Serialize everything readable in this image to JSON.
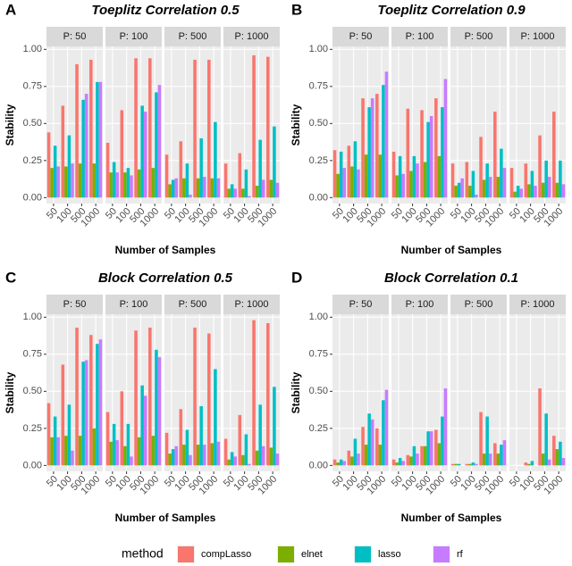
{
  "legend_title": "method",
  "chart_data": [
    {
      "type": "bar",
      "tag": "A",
      "title": "Toeplitz Correlation 0.5",
      "xlabel": "Number of Samples",
      "ylabel": "Stability",
      "facets": [
        "P: 50",
        "P: 100",
        "P: 500",
        "P: 1000"
      ],
      "categories": [
        "50",
        "100",
        "500",
        "1000"
      ],
      "ylim": [
        -0.04,
        1.02
      ],
      "yticks": [
        {
          "value": 0,
          "label": "0.00"
        },
        {
          "value": 0.25,
          "label": "0.25"
        },
        {
          "value": 0.5,
          "label": "0.50"
        },
        {
          "value": 0.75,
          "label": "0.75"
        },
        {
          "value": 1,
          "label": "1.00"
        }
      ],
      "series": [
        {
          "name": "compLasso",
          "color": "#F8766D",
          "values": [
            [
              0.44,
              0.62,
              0.9,
              0.93
            ],
            [
              0.37,
              0.59,
              0.94,
              0.94
            ],
            [
              0.29,
              0.38,
              0.93,
              0.93
            ],
            [
              0.23,
              0.3,
              0.96,
              0.95
            ]
          ]
        },
        {
          "name": "elnet",
          "color": "#7CAE00",
          "values": [
            [
              0.2,
              0.21,
              0.23,
              0.23
            ],
            [
              0.17,
              0.17,
              0.19,
              0.2
            ],
            [
              0.09,
              0.13,
              0.13,
              0.13
            ],
            [
              0.06,
              0.06,
              0.08,
              0.12
            ]
          ]
        },
        {
          "name": "lasso",
          "color": "#00BFC4",
          "values": [
            [
              0.35,
              0.42,
              0.66,
              0.78
            ],
            [
              0.24,
              0.2,
              0.62,
              0.71
            ],
            [
              0.12,
              0.23,
              0.4,
              0.51
            ],
            [
              0.09,
              0.19,
              0.39,
              0.48
            ]
          ]
        },
        {
          "name": "rf",
          "color": "#C77CFF",
          "values": [
            [
              0.21,
              0.23,
              0.7,
              0.78
            ],
            [
              0.17,
              0.15,
              0.58,
              0.76
            ],
            [
              0.13,
              0.02,
              0.14,
              0.13
            ],
            [
              0.06,
              0.01,
              0.12,
              0.1
            ]
          ]
        }
      ]
    },
    {
      "type": "bar",
      "tag": "B",
      "title": "Toeplitz Correlation 0.9",
      "xlabel": "Number of Samples",
      "ylabel": "Stability",
      "facets": [
        "P: 50",
        "P: 100",
        "P: 500",
        "P: 1000"
      ],
      "categories": [
        "50",
        "100",
        "500",
        "1000"
      ],
      "ylim": [
        -0.04,
        1.02
      ],
      "yticks": [
        {
          "value": 0,
          "label": "0.00"
        },
        {
          "value": 0.25,
          "label": "0.25"
        },
        {
          "value": 0.5,
          "label": "0.50"
        },
        {
          "value": 0.75,
          "label": "0.75"
        },
        {
          "value": 1,
          "label": "1.00"
        }
      ],
      "series": [
        {
          "name": "compLasso",
          "color": "#F8766D",
          "values": [
            [
              0.32,
              0.35,
              0.67,
              0.7
            ],
            [
              0.31,
              0.6,
              0.59,
              0.67
            ],
            [
              0.23,
              0.24,
              0.41,
              0.58
            ],
            [
              0.2,
              0.23,
              0.42,
              0.58
            ]
          ]
        },
        {
          "name": "elnet",
          "color": "#7CAE00",
          "values": [
            [
              0.16,
              0.21,
              0.29,
              0.29
            ],
            [
              0.15,
              0.18,
              0.24,
              0.28
            ],
            [
              0.08,
              0.08,
              0.12,
              0.14
            ],
            [
              0.04,
              0.09,
              0.1,
              0.1
            ]
          ]
        },
        {
          "name": "lasso",
          "color": "#00BFC4",
          "values": [
            [
              0.31,
              0.38,
              0.61,
              0.76
            ],
            [
              0.28,
              0.28,
              0.51,
              0.61
            ],
            [
              0.1,
              0.18,
              0.23,
              0.33
            ],
            [
              0.08,
              0.18,
              0.25,
              0.25
            ]
          ]
        },
        {
          "name": "rf",
          "color": "#C77CFF",
          "values": [
            [
              0.2,
              0.19,
              0.67,
              0.85
            ],
            [
              0.16,
              0.23,
              0.55,
              0.8
            ],
            [
              0.13,
              0.02,
              0.14,
              0.2
            ],
            [
              0.06,
              0.08,
              0.14,
              0.09
            ]
          ]
        }
      ]
    },
    {
      "type": "bar",
      "tag": "C",
      "title": "Block Correlation 0.5",
      "xlabel": "Number of Samples",
      "ylabel": "Stability",
      "facets": [
        "P: 50",
        "P: 100",
        "P: 500",
        "P: 1000"
      ],
      "categories": [
        "50",
        "100",
        "500",
        "1000"
      ],
      "ylim": [
        -0.04,
        1.02
      ],
      "yticks": [
        {
          "value": 0,
          "label": "0.00"
        },
        {
          "value": 0.25,
          "label": "0.25"
        },
        {
          "value": 0.5,
          "label": "0.50"
        },
        {
          "value": 0.75,
          "label": "0.75"
        },
        {
          "value": 1,
          "label": "1.00"
        }
      ],
      "series": [
        {
          "name": "compLasso",
          "color": "#F8766D",
          "values": [
            [
              0.42,
              0.68,
              0.93,
              0.88
            ],
            [
              0.36,
              0.5,
              0.91,
              0.93
            ],
            [
              0.22,
              0.38,
              0.93,
              0.89
            ],
            [
              0.18,
              0.34,
              0.98,
              0.96
            ]
          ]
        },
        {
          "name": "elnet",
          "color": "#7CAE00",
          "values": [
            [
              0.19,
              0.2,
              0.2,
              0.25
            ],
            [
              0.16,
              0.13,
              0.19,
              0.2
            ],
            [
              0.08,
              0.14,
              0.14,
              0.15
            ],
            [
              0.04,
              0.07,
              0.1,
              0.12
            ]
          ]
        },
        {
          "name": "lasso",
          "color": "#00BFC4",
          "values": [
            [
              0.33,
              0.41,
              0.7,
              0.82
            ],
            [
              0.28,
              0.28,
              0.54,
              0.78
            ],
            [
              0.11,
              0.24,
              0.4,
              0.65
            ],
            [
              0.09,
              0.21,
              0.41,
              0.53
            ]
          ]
        },
        {
          "name": "rf",
          "color": "#C77CFF",
          "values": [
            [
              0.19,
              0.1,
              0.71,
              0.85
            ],
            [
              0.17,
              0.06,
              0.47,
              0.73
            ],
            [
              0.13,
              0.07,
              0.14,
              0.16
            ],
            [
              0.06,
              0.01,
              0.13,
              0.08
            ]
          ]
        }
      ]
    },
    {
      "type": "bar",
      "tag": "D",
      "title": "Block Correlation 0.1",
      "xlabel": "Number of Samples",
      "ylabel": "Stability",
      "facets": [
        "P: 50",
        "P: 100",
        "P: 500",
        "P: 1000"
      ],
      "categories": [
        "50",
        "100",
        "500",
        "1000"
      ],
      "ylim": [
        -0.04,
        1.02
      ],
      "yticks": [
        {
          "value": 0,
          "label": "0.00"
        },
        {
          "value": 0.25,
          "label": "0.25"
        },
        {
          "value": 0.5,
          "label": "0.50"
        },
        {
          "value": 0.75,
          "label": "0.75"
        },
        {
          "value": 1,
          "label": "1.00"
        }
      ],
      "series": [
        {
          "name": "compLasso",
          "color": "#F8766D",
          "values": [
            [
              0.04,
              0.1,
              0.26,
              0.25
            ],
            [
              0.04,
              0.07,
              0.13,
              0.24
            ],
            [
              0.01,
              0.01,
              0.36,
              0.15
            ],
            [
              0.0,
              0.02,
              0.52,
              0.2
            ]
          ]
        },
        {
          "name": "elnet",
          "color": "#7CAE00",
          "values": [
            [
              0.02,
              0.06,
              0.14,
              0.14
            ],
            [
              0.02,
              0.06,
              0.13,
              0.15
            ],
            [
              0.01,
              0.01,
              0.08,
              0.08
            ],
            [
              0.0,
              0.01,
              0.08,
              0.11
            ]
          ]
        },
        {
          "name": "lasso",
          "color": "#00BFC4",
          "values": [
            [
              0.04,
              0.18,
              0.35,
              0.44
            ],
            [
              0.05,
              0.13,
              0.23,
              0.33
            ],
            [
              0.01,
              0.02,
              0.33,
              0.14
            ],
            [
              0.0,
              0.03,
              0.35,
              0.16
            ]
          ]
        },
        {
          "name": "rf",
          "color": "#C77CFF",
          "values": [
            [
              0.03,
              0.08,
              0.31,
              0.51
            ],
            [
              0.03,
              0.08,
              0.23,
              0.52
            ],
            [
              0.0,
              0.01,
              0.08,
              0.17
            ],
            [
              0.0,
              0.0,
              0.04,
              0.05
            ]
          ]
        }
      ]
    }
  ]
}
